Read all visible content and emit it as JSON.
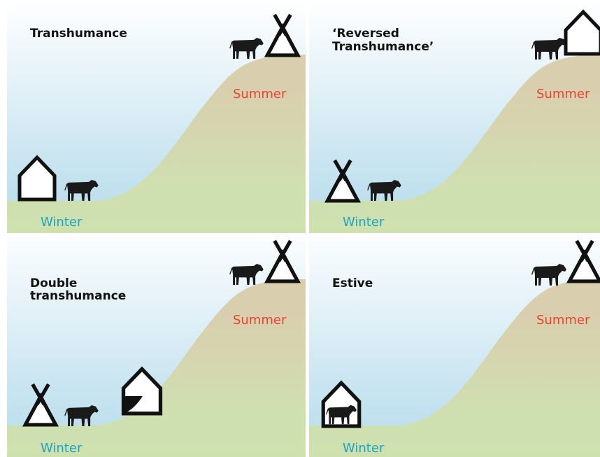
{
  "panels": [
    {
      "title": [
        "Transhumance"
      ],
      "summer": "Summer",
      "winter": "Winter"
    },
    {
      "title": [
        "‘Reversed",
        "Transhumance’"
      ],
      "summer": "Summer",
      "winter": "Winter"
    },
    {
      "title": [
        "Double",
        "transhumance"
      ],
      "summer": "Summer",
      "winter": "Winter"
    },
    {
      "title": [
        "Estive"
      ],
      "summer": "Summer",
      "winter": "Winter"
    }
  ]
}
